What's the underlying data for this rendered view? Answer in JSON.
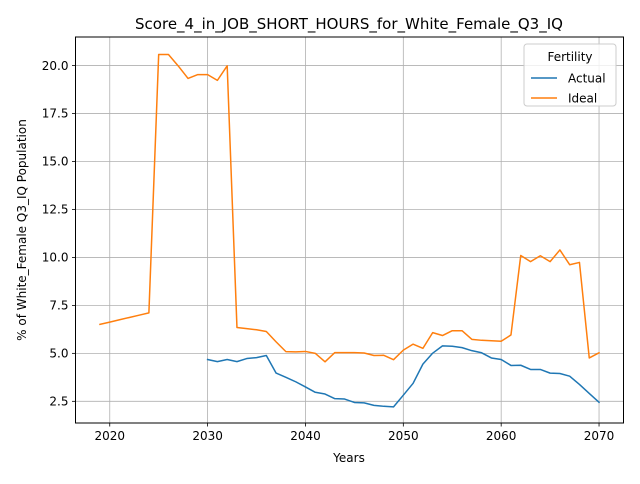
{
  "chart_data": {
    "type": "line",
    "title": "Score_4_in_JOB_SHORT_HOURS_for_White_Female_Q3_IQ",
    "xlabel": "Years",
    "ylabel": "% of White_Female Q3_IQ Population",
    "xlim": [
      2016.5,
      2072.5
    ],
    "ylim": [
      1.37,
      21.49
    ],
    "xticks": [
      2020,
      2030,
      2040,
      2050,
      2060,
      2070
    ],
    "yticks": [
      2.5,
      5.0,
      7.5,
      10.0,
      12.5,
      15.0,
      17.5,
      20.0
    ],
    "ytick_labels": [
      "2.5",
      "5.0",
      "7.5",
      "10.0",
      "12.5",
      "15.0",
      "17.5",
      "20.0"
    ],
    "grid": true,
    "legend": {
      "title": "Fertility",
      "placement": "top-right"
    },
    "series": [
      {
        "name": "Actual",
        "color": "#1f77b4",
        "x": [
          2030,
          2031,
          2032,
          2033,
          2034,
          2035,
          2036,
          2037,
          2038,
          2039,
          2040,
          2041,
          2042,
          2043,
          2044,
          2045,
          2046,
          2047,
          2048,
          2049,
          2050,
          2051,
          2052,
          2053,
          2054,
          2055,
          2056,
          2057,
          2058,
          2059,
          2060,
          2061,
          2062,
          2063,
          2064,
          2065,
          2066,
          2067,
          2068,
          2069,
          2070
        ],
        "y": [
          4.68,
          4.57,
          4.68,
          4.57,
          4.73,
          4.78,
          4.89,
          3.97,
          3.75,
          3.52,
          3.25,
          2.97,
          2.88,
          2.64,
          2.62,
          2.44,
          2.42,
          2.29,
          2.24,
          2.21,
          2.82,
          3.44,
          4.44,
          5.01,
          5.39,
          5.37,
          5.3,
          5.14,
          5.03,
          4.76,
          4.68,
          4.37,
          4.38,
          4.16,
          4.16,
          3.97,
          3.95,
          3.81,
          3.38,
          2.91,
          2.45
        ]
      },
      {
        "name": "Ideal",
        "color": "#ff7f0e",
        "x": [
          2019,
          2020,
          2021,
          2022,
          2023,
          2024,
          2025,
          2026,
          2027,
          2028,
          2029,
          2030,
          2031,
          2032,
          2033,
          2034,
          2035,
          2036,
          2037,
          2038,
          2039,
          2040,
          2041,
          2042,
          2043,
          2044,
          2045,
          2046,
          2047,
          2048,
          2049,
          2050,
          2051,
          2052,
          2053,
          2054,
          2055,
          2056,
          2057,
          2058,
          2059,
          2060,
          2061,
          2062,
          2063,
          2064,
          2065,
          2066,
          2067,
          2068,
          2069,
          2070
        ],
        "y": [
          6.51,
          6.63,
          6.75,
          6.87,
          6.99,
          7.11,
          20.58,
          20.58,
          19.98,
          19.33,
          19.53,
          19.53,
          19.23,
          19.99,
          6.35,
          6.29,
          6.23,
          6.14,
          5.6,
          5.09,
          5.08,
          5.1,
          5.0,
          4.56,
          5.04,
          5.04,
          5.04,
          5.02,
          4.89,
          4.9,
          4.67,
          5.17,
          5.48,
          5.26,
          6.08,
          5.93,
          6.18,
          6.18,
          5.73,
          5.68,
          5.66,
          5.63,
          5.96,
          10.1,
          9.78,
          10.09,
          9.78,
          10.39,
          9.62,
          9.74,
          4.76,
          5.03
        ]
      }
    ]
  }
}
